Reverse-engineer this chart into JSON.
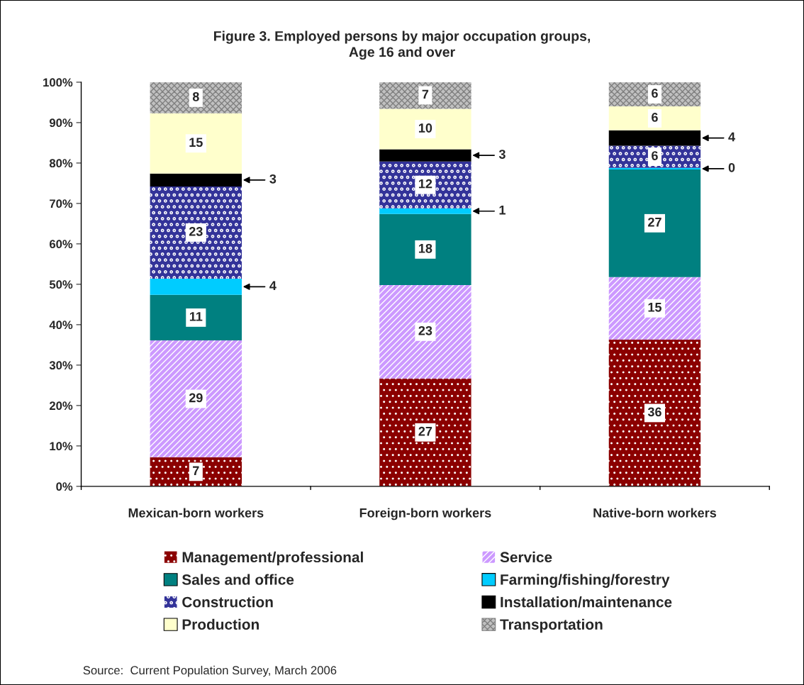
{
  "chart_data": {
    "type": "bar",
    "stacked": true,
    "title": "Figure 3. Employed persons by major occupation groups,\nAge 16 and over",
    "categories": [
      "Mexican-born workers",
      "Foreign-born workers",
      "Native-born workers"
    ],
    "ylim": [
      0,
      100
    ],
    "yticks": [
      {
        "value": 0,
        "label": "0%"
      },
      {
        "value": 10,
        "label": "10%"
      },
      {
        "value": 20,
        "label": "20%"
      },
      {
        "value": 30,
        "label": "30%"
      },
      {
        "value": 40,
        "label": "40%"
      },
      {
        "value": 50,
        "label": "50%"
      },
      {
        "value": 60,
        "label": "60%"
      },
      {
        "value": 70,
        "label": "70%"
      },
      {
        "value": 80,
        "label": "80%"
      },
      {
        "value": 90,
        "label": "90%"
      },
      {
        "value": 100,
        "label": "100%"
      }
    ],
    "series": [
      {
        "name": "Management/professional",
        "color": "#8b0000",
        "values": [
          7.2,
          26.7,
          36.3
        ],
        "value_labels": [
          "7",
          "27",
          "36"
        ]
      },
      {
        "name": "Service",
        "color": "#cc99ff",
        "values": [
          28.9,
          23.1,
          15.5
        ],
        "value_labels": [
          "29",
          "23",
          "15"
        ]
      },
      {
        "name": "Sales and office",
        "color": "#008080",
        "values": [
          11.3,
          17.6,
          26.6
        ],
        "value_labels": [
          "11",
          "18",
          "27"
        ]
      },
      {
        "name": "Farming/fishing/forestry",
        "color": "#00ccff",
        "values": [
          4.0,
          1.4,
          0.4
        ],
        "value_labels": [
          "4",
          "1",
          "0"
        ]
      },
      {
        "name": "Construction",
        "color": "#333399",
        "values": [
          22.8,
          11.6,
          5.5
        ],
        "value_labels": [
          "23",
          "12",
          "6"
        ]
      },
      {
        "name": "Installation/maintenance",
        "color": "#000000",
        "values": [
          3.2,
          3.0,
          3.8
        ],
        "value_labels": [
          "3",
          "3",
          "4"
        ]
      },
      {
        "name": "Production",
        "color": "#ffffcc",
        "values": [
          14.9,
          10.0,
          5.9
        ],
        "value_labels": [
          "15",
          "10",
          "6"
        ]
      },
      {
        "name": "Transportation",
        "color": "#c0c0c0",
        "values": [
          7.7,
          6.7,
          6.0
        ],
        "value_labels": [
          "8",
          "7",
          "6"
        ]
      }
    ],
    "legend": "bottom",
    "grid": false,
    "annotations": [
      "Source:  Current Population Survey, March 2006"
    ]
  }
}
